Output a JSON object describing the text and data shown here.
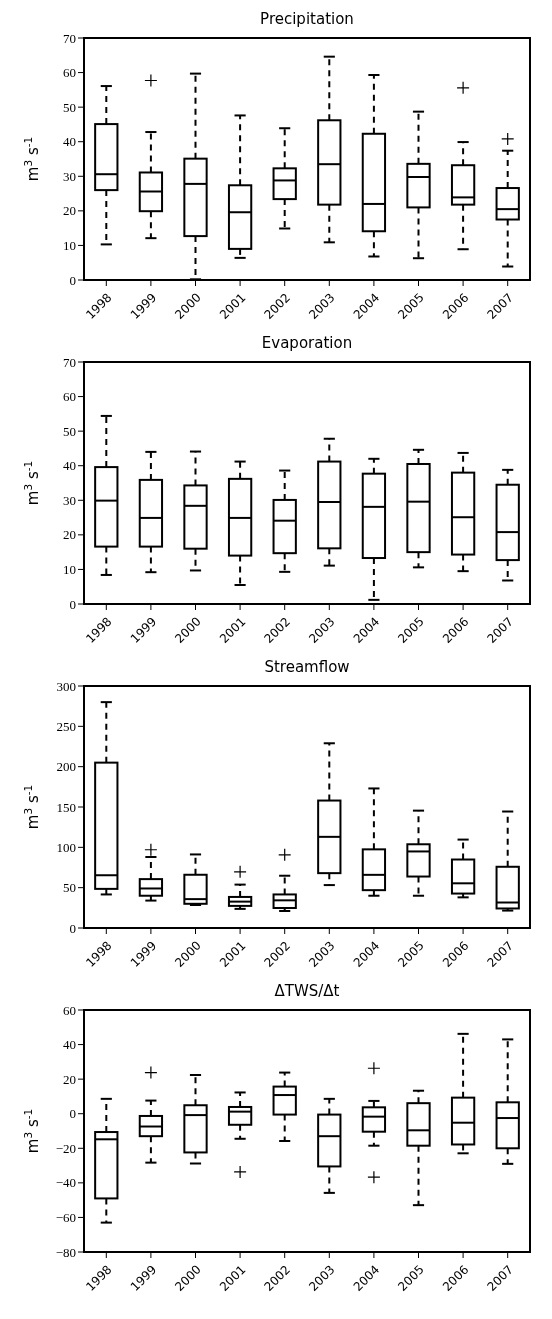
{
  "chart_data": [
    {
      "type": "box",
      "title": "Precipitation",
      "ylabel": "m$^{3}$ s$^{-1}$",
      "categories": [
        "1998",
        "1999",
        "2000",
        "2001",
        "2002",
        "2003",
        "2004",
        "2005",
        "2006",
        "2007"
      ],
      "ylim": [
        0,
        70
      ],
      "yticks": [
        0,
        10,
        20,
        30,
        40,
        50,
        60,
        70
      ],
      "boxes": [
        {
          "low": 10.3,
          "q1": 26,
          "median": 30.6,
          "q3": 45.1,
          "high": 56.1
        },
        {
          "low": 12.1,
          "q1": 19.9,
          "median": 25.6,
          "q3": 31.1,
          "high": 42.8,
          "outliers": [
            57.7
          ]
        },
        {
          "low": 0.2,
          "q1": 12.7,
          "median": 27.8,
          "q3": 35.1,
          "high": 59.7
        },
        {
          "low": 6.4,
          "q1": 9,
          "median": 19.6,
          "q3": 27.4,
          "high": 47.6
        },
        {
          "low": 14.9,
          "q1": 23.4,
          "median": 28.8,
          "q3": 32.3,
          "high": 43.9
        },
        {
          "low": 10.9,
          "q1": 21.8,
          "median": 33.5,
          "q3": 46.2,
          "high": 64.6
        },
        {
          "low": 6.8,
          "q1": 14.1,
          "median": 22,
          "q3": 42.3,
          "high": 59.3
        },
        {
          "low": 6.3,
          "q1": 21,
          "median": 29.8,
          "q3": 33.6,
          "high": 48.7
        },
        {
          "low": 8.9,
          "q1": 21.8,
          "median": 23.9,
          "q3": 33.2,
          "high": 39.9,
          "outliers": [
            55.6
          ]
        },
        {
          "low": 3.9,
          "q1": 17.5,
          "median": 20.5,
          "q3": 26.6,
          "high": 37.4,
          "outliers": [
            40.8
          ]
        }
      ]
    },
    {
      "type": "box",
      "title": "Evaporation",
      "ylabel": "m$^{3}$ s$^{-1}$",
      "categories": [
        "1998",
        "1999",
        "2000",
        "2001",
        "2002",
        "2003",
        "2004",
        "2005",
        "2006",
        "2007"
      ],
      "ylim": [
        0,
        70
      ],
      "yticks": [
        0,
        10,
        20,
        30,
        40,
        50,
        60,
        70
      ],
      "boxes": [
        {
          "low": 8.4,
          "q1": 16.6,
          "median": 29.9,
          "q3": 39.6,
          "high": 54.4
        },
        {
          "low": 9.2,
          "q1": 16.6,
          "median": 24.9,
          "q3": 35.9,
          "high": 44
        },
        {
          "low": 9.7,
          "q1": 16,
          "median": 28.4,
          "q3": 34.3,
          "high": 44.1
        },
        {
          "low": 5.5,
          "q1": 14,
          "median": 24.9,
          "q3": 36.2,
          "high": 41.2
        },
        {
          "low": 9.3,
          "q1": 14.7,
          "median": 24.1,
          "q3": 30.1,
          "high": 38.6
        },
        {
          "low": 11.1,
          "q1": 16.1,
          "median": 29.5,
          "q3": 41.2,
          "high": 47.8
        },
        {
          "low": 1.2,
          "q1": 13.3,
          "median": 28.1,
          "q3": 37.7,
          "high": 42
        },
        {
          "low": 10.6,
          "q1": 15,
          "median": 29.6,
          "q3": 40.5,
          "high": 44.6
        },
        {
          "low": 9.5,
          "q1": 14.3,
          "median": 25.1,
          "q3": 38,
          "high": 43.7
        },
        {
          "low": 6.8,
          "q1": 12.7,
          "median": 20.8,
          "q3": 34.5,
          "high": 38.8
        }
      ]
    },
    {
      "type": "box",
      "title": "Streamflow",
      "ylabel": "m$^{3}$ s$^{-1}$",
      "categories": [
        "1998",
        "1999",
        "2000",
        "2001",
        "2002",
        "2003",
        "2004",
        "2005",
        "2006",
        "2007"
      ],
      "ylim": [
        0,
        300
      ],
      "yticks": [
        0,
        50,
        100,
        150,
        200,
        250,
        300
      ],
      "boxes": [
        {
          "low": 41.6,
          "q1": 48.5,
          "median": 65.4,
          "q3": 205,
          "high": 280
        },
        {
          "low": 34,
          "q1": 40,
          "median": 49,
          "q3": 60.6,
          "high": 88,
          "outliers": [
            97
          ]
        },
        {
          "low": 28.5,
          "q1": 30,
          "median": 35.8,
          "q3": 66,
          "high": 91.2
        },
        {
          "low": 23.7,
          "q1": 27.4,
          "median": 32.7,
          "q3": 38.5,
          "high": 53.8,
          "outliers": [
            69.6
          ]
        },
        {
          "low": 21.1,
          "q1": 24.8,
          "median": 34.3,
          "q3": 41.6,
          "high": 64.8,
          "outliers": [
            90.7
          ]
        },
        {
          "low": 53.2,
          "q1": 68,
          "median": 113,
          "q3": 158,
          "high": 229
        },
        {
          "low": 40,
          "q1": 46.9,
          "median": 65.9,
          "q3": 97.5,
          "high": 173
        },
        {
          "low": 40,
          "q1": 63.8,
          "median": 94.9,
          "q3": 103.8,
          "high": 145.5
        },
        {
          "low": 38,
          "q1": 42.7,
          "median": 55.4,
          "q3": 84.9,
          "high": 109.6
        },
        {
          "low": 21.6,
          "q1": 24.2,
          "median": 31.6,
          "q3": 75.9,
          "high": 144.4
        }
      ]
    },
    {
      "type": "box",
      "title": "ΔTWS/Δt",
      "ylabel": "m$^{3}$ s$^{-1}$",
      "categories": [
        "1998",
        "1999",
        "2000",
        "2001",
        "2002",
        "2003",
        "2004",
        "2005",
        "2006",
        "2007"
      ],
      "ylim": [
        -80,
        60
      ],
      "yticks": [
        -80,
        -60,
        -40,
        -20,
        0,
        20,
        40,
        60
      ],
      "boxes": [
        {
          "low": -63,
          "q1": -49,
          "median": -14.8,
          "q3": -10.6,
          "high": 8.6
        },
        {
          "low": -28.3,
          "q1": -13,
          "median": -7.4,
          "q3": -1.3,
          "high": 7.6,
          "outliers": [
            23.8
          ]
        },
        {
          "low": -28.8,
          "q1": -22.4,
          "median": -0.8,
          "q3": 4.9,
          "high": 22.4
        },
        {
          "low": -14.5,
          "q1": -6.4,
          "median": 1.2,
          "q3": 3.9,
          "high": 12.3,
          "outliers": [
            -33.7
          ]
        },
        {
          "low": -15.8,
          "q1": -0.5,
          "median": 10.8,
          "q3": 15.7,
          "high": 23.8
        },
        {
          "low": -45.8,
          "q1": -30.5,
          "median": -13,
          "q3": -0.5,
          "high": 8.6
        },
        {
          "low": -18.5,
          "q1": -10.4,
          "median": -1.7,
          "q3": 3.7,
          "high": 7.4,
          "outliers": [
            26.3,
            -36.7
          ]
        },
        {
          "low": -52.9,
          "q1": -18.5,
          "median": -9.6,
          "q3": 6.1,
          "high": 13.3
        },
        {
          "low": -22.9,
          "q1": -17.8,
          "median": -5.2,
          "q3": 9.3,
          "high": 46.2
        },
        {
          "low": -29,
          "q1": -20,
          "median": -2.5,
          "q3": 6.6,
          "high": 43
        }
      ]
    }
  ]
}
